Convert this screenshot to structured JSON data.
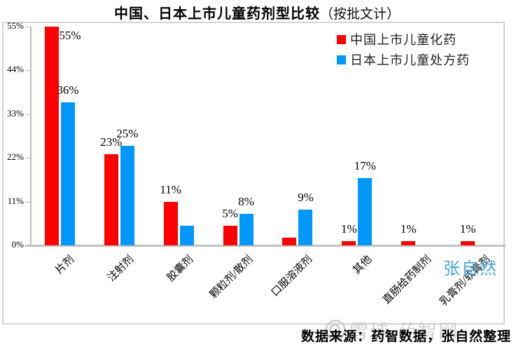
{
  "title": {
    "main": "中国、日本上市儿童药剂型比较",
    "suffix": "（按批文计）"
  },
  "legend": [
    {
      "label": "中国上市儿童化药",
      "color": "#FF0000"
    },
    {
      "label": "日本上市儿童处方药",
      "color": "#0099FB"
    }
  ],
  "chart_data": {
    "type": "bar",
    "title": "中国、日本上市儿童药剂型比较（按批文计）",
    "categories": [
      "片剂",
      "注射剂",
      "胶囊剂",
      "颗粒剂/散剂",
      "口服溶液剂",
      "其他",
      "直肠给药制剂",
      "乳膏剂/软膏剂"
    ],
    "series": [
      {
        "name": "中国上市儿童化药",
        "color": "#FF0000",
        "values": [
          55,
          23,
          11,
          5,
          2,
          1,
          1,
          1
        ],
        "labels": [
          "55%",
          "23%",
          "11%",
          "5%",
          "",
          "1%",
          "1%",
          "1%"
        ]
      },
      {
        "name": "日本上市儿童处方药",
        "color": "#0099FB",
        "values": [
          36,
          25,
          5,
          8,
          9,
          17,
          0,
          0
        ],
        "labels": [
          "36%",
          "25%",
          "",
          "8%",
          "9%",
          "17%",
          "",
          ""
        ]
      }
    ],
    "ylim": [
      0,
      55
    ],
    "ytick_values": [
      0,
      11,
      22,
      33,
      44,
      55
    ],
    "ytick_labels": [
      "0%",
      "11%",
      "22%",
      "33%",
      "44%",
      "55%"
    ],
    "grid": false,
    "legend_position": "top-right",
    "xlabel": "",
    "ylabel": ""
  },
  "watermarks": {
    "author": "张自然",
    "site": "雪球·药智网"
  },
  "source_line": "数据来源：药智数据，张自然整理",
  "colors": {
    "bar_china": "#FF0000",
    "bar_japan": "#0099FB",
    "author_watermark": "#45A6DC",
    "site_watermark": "#C8C8C8",
    "axis": "#BDBDBD",
    "frame": "#D4D4D4"
  }
}
